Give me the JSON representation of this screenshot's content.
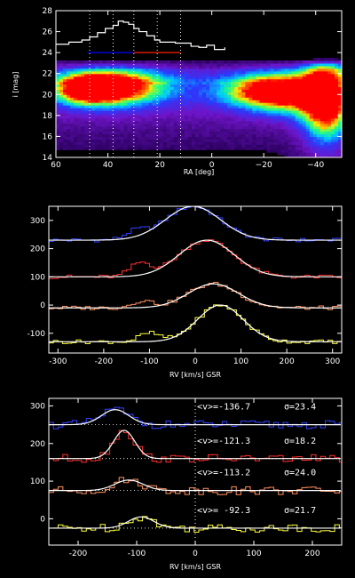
{
  "chart_data": [
    {
      "type": "heatmap",
      "panel": "top",
      "xlabel": "RA [deg]",
      "ylabel": "i [mag]",
      "xlim": [
        60,
        -50
      ],
      "ylim": [
        14,
        28
      ],
      "xticks": [
        60,
        40,
        20,
        0,
        -20,
        -40
      ],
      "xtick_labels": [
        "60",
        "40",
        "20",
        "0",
        "−20",
        "−40"
      ],
      "yticks": [
        14,
        16,
        18,
        20,
        22,
        24,
        26,
        28
      ],
      "vlines": [
        47,
        38,
        30,
        21,
        12
      ],
      "segment": {
        "x": [
          48,
          12
        ],
        "y": 24.0,
        "left_color": "#0000ff",
        "right_color": "#ff2000"
      },
      "profile": {
        "x": [
          60,
          55,
          50,
          47,
          44,
          41,
          38,
          36,
          34,
          32,
          30,
          28,
          25,
          22,
          20,
          17,
          14,
          11,
          8,
          5,
          2,
          -1,
          -5
        ],
        "y": [
          24.8,
          25.0,
          25.2,
          25.5,
          25.9,
          26.3,
          26.6,
          27.0,
          26.9,
          26.7,
          26.3,
          26.0,
          25.6,
          25.2,
          25.0,
          25.0,
          24.9,
          24.9,
          24.6,
          24.5,
          24.7,
          24.3,
          24.5
        ]
      },
      "density_blobs": [
        {
          "x": 37,
          "y": 20.8,
          "rx": 16,
          "ry": 1.3,
          "level": 0.9
        },
        {
          "x": 48,
          "y": 20.5,
          "rx": 9,
          "ry": 1.0,
          "level": 0.6
        },
        {
          "x": -15,
          "y": 20.4,
          "rx": 12,
          "ry": 1.2,
          "level": 0.55
        },
        {
          "x": -28,
          "y": 20.2,
          "rx": 10,
          "ry": 1.4,
          "level": 0.7
        },
        {
          "x": -44,
          "y": 19.6,
          "rx": 7,
          "ry": 3.2,
          "level": 1.0
        }
      ]
    },
    {
      "type": "line",
      "panel": "middle",
      "xlabel": "RV [km/s] GSR",
      "xlim": [
        -320,
        320
      ],
      "ylim": [
        -170,
        350
      ],
      "xticks": [
        -300,
        -200,
        -100,
        0,
        100,
        200,
        300
      ],
      "yticks": [
        -100,
        0,
        100,
        200,
        300
      ],
      "series": [
        {
          "color": "#3040ff",
          "offset": 230,
          "center": -5,
          "sigma": 60,
          "amp": 120,
          "bump_center": -130,
          "bump_amp": 25
        },
        {
          "color": "#ff3030",
          "offset": 100,
          "center": 25,
          "sigma": 60,
          "amp": 130,
          "bump_center": -120,
          "bump_amp": 45
        },
        {
          "color": "#ff9060",
          "offset": -10,
          "center": 40,
          "sigma": 55,
          "amp": 85,
          "bump_center": -115,
          "bump_amp": 25
        },
        {
          "color": "#ffff40",
          "offset": -130,
          "center": 55,
          "sigma": 50,
          "amp": 130,
          "bump_center": -100,
          "bump_amp": 30
        }
      ]
    },
    {
      "type": "line",
      "panel": "bottom",
      "xlabel": "RV [km/s] GSR",
      "xlim": [
        -250,
        250
      ],
      "ylim": [
        -70,
        320
      ],
      "xticks": [
        -200,
        -100,
        0,
        100,
        200
      ],
      "yticks": [
        0,
        100,
        200,
        300
      ],
      "series": [
        {
          "color": "#3040ff",
          "offset": 250,
          "center": -136.7,
          "sigma": 23.4,
          "amp": 40,
          "label_v": "-136.7",
          "label_s": "23.4"
        },
        {
          "color": "#ff3030",
          "offset": 160,
          "center": -121.3,
          "sigma": 18.2,
          "amp": 75,
          "label_v": "-121.3",
          "label_s": "18.2"
        },
        {
          "color": "#ff9060",
          "offset": 75,
          "center": -113.2,
          "sigma": 24.0,
          "amp": 28,
          "label_v": "-113.2",
          "label_s": "24.0"
        },
        {
          "color": "#ffff40",
          "offset": -25,
          "center": -92.3,
          "sigma": 21.7,
          "amp": 30,
          "label_v": " -92.3",
          "label_s": "21.7"
        }
      ]
    }
  ],
  "text": {
    "top_xlabel": "RA [deg]",
    "top_ylabel": "i [mag]",
    "mid_xlabel": "RV [km/s] GSR",
    "bot_xlabel": "RV [km/s] GSR",
    "v_prefix": "<v>=",
    "s_prefix": "σ="
  }
}
